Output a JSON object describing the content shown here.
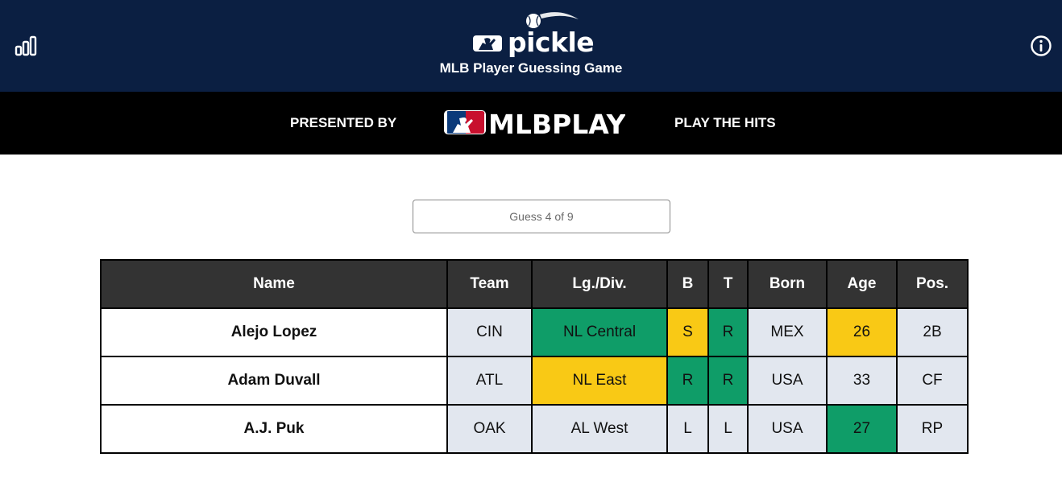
{
  "header": {
    "logo_text": "pickle",
    "subtitle": "MLB Player Guessing Game",
    "stats_icon": "bar-chart-icon",
    "info_icon": "info-icon"
  },
  "sponsor": {
    "presented_by": "PRESENTED BY",
    "logo_text": "MLBPLAY",
    "play_hits": "PLAY THE HITS"
  },
  "guess_input": {
    "placeholder": "Guess 4 of 9",
    "value": ""
  },
  "colors": {
    "navy": "#0b1f42",
    "green": "#0f9d68",
    "yellow": "#f9c915",
    "grey": "#e2e7ef",
    "header_dark": "#333333"
  },
  "table": {
    "headers": [
      "Name",
      "Team",
      "Lg./Div.",
      "B",
      "T",
      "Born",
      "Age",
      "Pos."
    ],
    "rows": [
      {
        "name": "Alejo Lopez",
        "cells": [
          {
            "text": "CIN",
            "status": "grey"
          },
          {
            "text": "NL Central",
            "status": "green"
          },
          {
            "text": "S",
            "status": "yellow"
          },
          {
            "text": "R",
            "status": "green"
          },
          {
            "text": "MEX",
            "status": "grey"
          },
          {
            "text": "26",
            "status": "yellow"
          },
          {
            "text": "2B",
            "status": "grey"
          }
        ]
      },
      {
        "name": "Adam Duvall",
        "cells": [
          {
            "text": "ATL",
            "status": "grey"
          },
          {
            "text": "NL East",
            "status": "yellow"
          },
          {
            "text": "R",
            "status": "green"
          },
          {
            "text": "R",
            "status": "green"
          },
          {
            "text": "USA",
            "status": "grey"
          },
          {
            "text": "33",
            "status": "grey"
          },
          {
            "text": "CF",
            "status": "grey"
          }
        ]
      },
      {
        "name": "A.J. Puk",
        "cells": [
          {
            "text": "OAK",
            "status": "grey"
          },
          {
            "text": "AL West",
            "status": "grey"
          },
          {
            "text": "L",
            "status": "grey"
          },
          {
            "text": "L",
            "status": "grey"
          },
          {
            "text": "USA",
            "status": "grey"
          },
          {
            "text": "27",
            "status": "green"
          },
          {
            "text": "RP",
            "status": "grey"
          }
        ]
      }
    ]
  }
}
